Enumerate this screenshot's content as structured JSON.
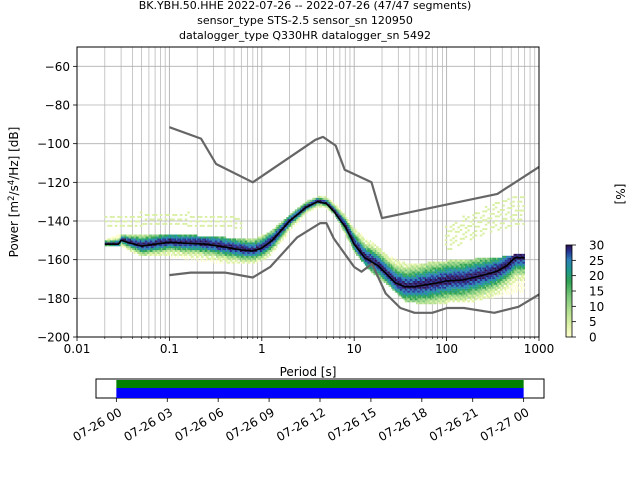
{
  "title_lines": [
    "BK.YBH.50.HHE   2022-07-26 -- 2022-07-26  (47/47 segments)",
    "sensor_type STS-2.5 sensor_sn 120950",
    "datalogger_type Q330HR datalogger_sn 5492"
  ],
  "chart_data": [
    {
      "type": "heatmap",
      "title": "BK.YBH.50.HHE   2022-07-26 -- 2022-07-26  (47/47 segments)",
      "xlabel": "Period [s]",
      "ylabel": "Power [m²/s⁴/Hz] [dB]",
      "x_scale": "log",
      "xlim": [
        0.01,
        1000
      ],
      "ylim": [
        -200,
        -50
      ],
      "x_ticks": [
        0.01,
        0.1,
        1,
        10,
        100,
        1000
      ],
      "x_tick_labels": [
        "0.01",
        "0.1",
        "1",
        "10",
        "100",
        "1000"
      ],
      "y_ticks": [
        -200,
        -180,
        -160,
        -140,
        -120,
        -100,
        -80,
        -60
      ],
      "y_tick_labels": [
        "−200",
        "−180",
        "−160",
        "−140",
        "−120",
        "−100",
        "−80",
        "−60"
      ],
      "grid": true,
      "colorbar": {
        "label": "[%]",
        "range": [
          0,
          30
        ],
        "ticks": [
          0,
          5,
          10,
          15,
          20,
          25,
          30
        ],
        "tick_labels": [
          "0",
          "5",
          "10",
          "15",
          "20",
          "25",
          "30"
        ]
      },
      "colors": {
        "noise_model": "#666666",
        "mode_line": "#000000"
      },
      "nhnm": {
        "x": [
          0.1,
          0.22,
          0.32,
          0.8,
          3.8,
          4.6,
          6.3,
          7.9,
          15.4,
          20,
          354.8,
          1000
        ],
        "y": [
          -91.5,
          -97.4,
          -110.5,
          -120,
          -98,
          -96.5,
          -101,
          -113.5,
          -120,
          -138.5,
          -126,
          -112
        ]
      },
      "nlnm": {
        "x": [
          0.1,
          0.17,
          0.4,
          0.8,
          1.24,
          2.4,
          4.3,
          5,
          6,
          10,
          12,
          15.6,
          21.9,
          31.6,
          45,
          70,
          101,
          154,
          328,
          600,
          1000
        ],
        "y": [
          -168,
          -166.7,
          -166.7,
          -169.2,
          -163.7,
          -148.6,
          -141.1,
          -141.1,
          -149,
          -163.8,
          -166.2,
          -162.1,
          -177.5,
          -185,
          -187.5,
          -187.5,
          -185,
          -185,
          -187.5,
          -184.4,
          -178
        ]
      },
      "mode": {
        "x": [
          0.02,
          0.028,
          0.03,
          0.035,
          0.05,
          0.07,
          0.1,
          0.15,
          0.25,
          0.4,
          0.6,
          0.8,
          1.0,
          1.3,
          2.0,
          3.0,
          4.0,
          5.0,
          6.0,
          8.0,
          10,
          13,
          18,
          22,
          28,
          35,
          45,
          60,
          80,
          100,
          150,
          250,
          350,
          450,
          550,
          700
        ],
        "y": [
          -152,
          -152,
          -150,
          -151,
          -153,
          -152,
          -151,
          -151.5,
          -152,
          -153.5,
          -155,
          -155.5,
          -154,
          -150,
          -140,
          -133,
          -130,
          -131,
          -135,
          -143,
          -152,
          -159,
          -163,
          -167,
          -172,
          -174,
          -174,
          -173,
          -172,
          -171,
          -170.5,
          -168,
          -166,
          -163,
          -159,
          -159
        ]
      },
      "density_stats": {
        "upper": {
          "x": [
            0.02,
            0.03,
            0.05,
            0.1,
            0.2,
            0.4,
            0.8,
            1.2,
            2,
            3,
            4.5,
            6,
            10,
            15,
            22,
            35,
            60,
            100,
            200,
            400,
            700
          ],
          "y": [
            -151,
            -148,
            -148,
            -148,
            -149,
            -150,
            -151,
            -147,
            -138,
            -131,
            -128,
            -131,
            -145,
            -152,
            -158,
            -163,
            -163,
            -162,
            -161,
            -160,
            -158
          ]
        },
        "lower": {
          "x": [
            0.02,
            0.03,
            0.05,
            0.1,
            0.2,
            0.4,
            0.8,
            1.2,
            2,
            3,
            4.5,
            6,
            10,
            15,
            22,
            35,
            60,
            100,
            200,
            400,
            700
          ],
          "y": [
            -153,
            -153,
            -158,
            -158,
            -160,
            -162,
            -162,
            -158,
            -145,
            -136,
            -132,
            -136,
            -156,
            -166,
            -172,
            -181,
            -183,
            -182,
            -181,
            -178,
            -176
          ]
        }
      },
      "sparse_band": {
        "x": [
          0.02,
          0.05,
          0.15,
          0.5,
          100,
          200,
          500,
          700
        ],
        "y_top": [
          -138,
          -136,
          -136,
          -138,
          -142,
          -135,
          -128,
          -128
        ],
        "y_bottom": [
          -143,
          -142,
          -142,
          -143,
          -155,
          -148,
          -142,
          -142
        ]
      }
    },
    {
      "type": "timeline",
      "x_tick_labels": [
        "07-26 00",
        "07-26 03",
        "07-26 06",
        "07-26 09",
        "07-26 12",
        "07-26 15",
        "07-26 18",
        "07-26 21",
        "07-27 00"
      ],
      "x_tick_hours": [
        0,
        3,
        6,
        9,
        12,
        15,
        18,
        21,
        24
      ],
      "xlim_hours": [
        -1.2,
        25.2
      ],
      "coverage_hours": [
        0,
        24
      ],
      "colors": {
        "data_available": "#008000",
        "psd_used": "#0000ff"
      }
    }
  ]
}
